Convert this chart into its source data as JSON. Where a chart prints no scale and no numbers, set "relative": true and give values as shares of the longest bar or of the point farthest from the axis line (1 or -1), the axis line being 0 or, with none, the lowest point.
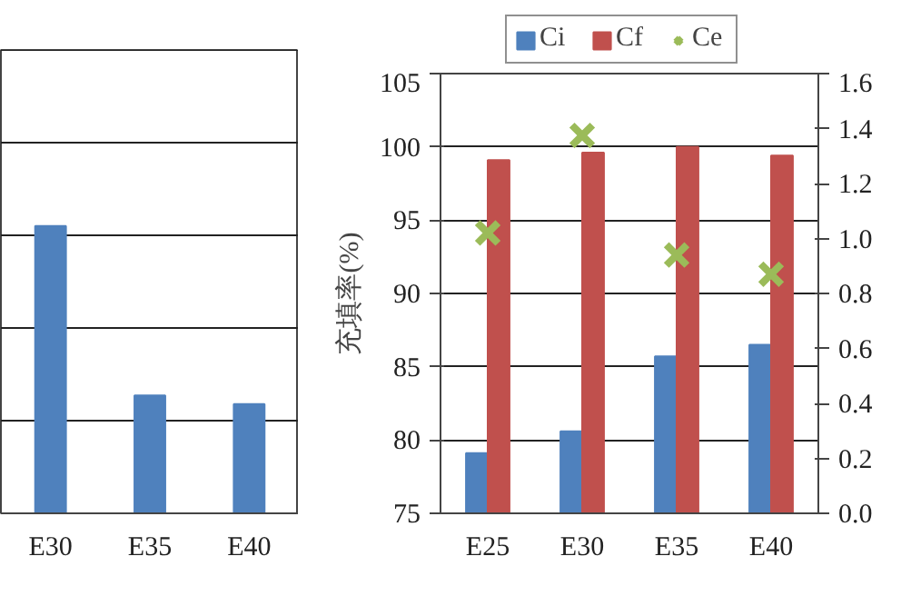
{
  "chart_data": [
    {
      "type": "bar",
      "categories": [
        "E30",
        "E35",
        "E40"
      ],
      "relative": true,
      "grid": true,
      "color": "#4f81bd",
      "values": [
        1,
        0.41,
        0.38
      ]
    },
    {
      "type": "bar",
      "categories": [
        "E25",
        "E30",
        "E35",
        "E40"
      ],
      "ylabel": "充填率(%)",
      "ylim": [
        75,
        105
      ],
      "yticks": [
        75,
        80,
        85,
        90,
        95,
        100,
        105
      ],
      "y2lim": [
        0,
        1.6
      ],
      "y2ticks": [
        {
          "value": 0,
          "label": "0.0"
        },
        0.2,
        0.4,
        0.6,
        0.8,
        {
          "value": 1,
          "label": "1.0"
        },
        1.2,
        1.4,
        1.6
      ],
      "grid": "y",
      "legend": "top",
      "series": [
        {
          "name": "Ci",
          "color": "#4f81bd",
          "values": [
            79.1,
            80.6,
            85.7,
            86.5
          ]
        },
        {
          "name": "Cf",
          "color": "#c0504d",
          "values": [
            99.1,
            99.6,
            100.0,
            99.4
          ]
        },
        {
          "name": "Ce",
          "type": "scatter",
          "axis": "y2",
          "marker": "cross",
          "color": "#9bbb59",
          "values": [
            1.02,
            1.375,
            0.94,
            0.87
          ]
        }
      ]
    }
  ]
}
